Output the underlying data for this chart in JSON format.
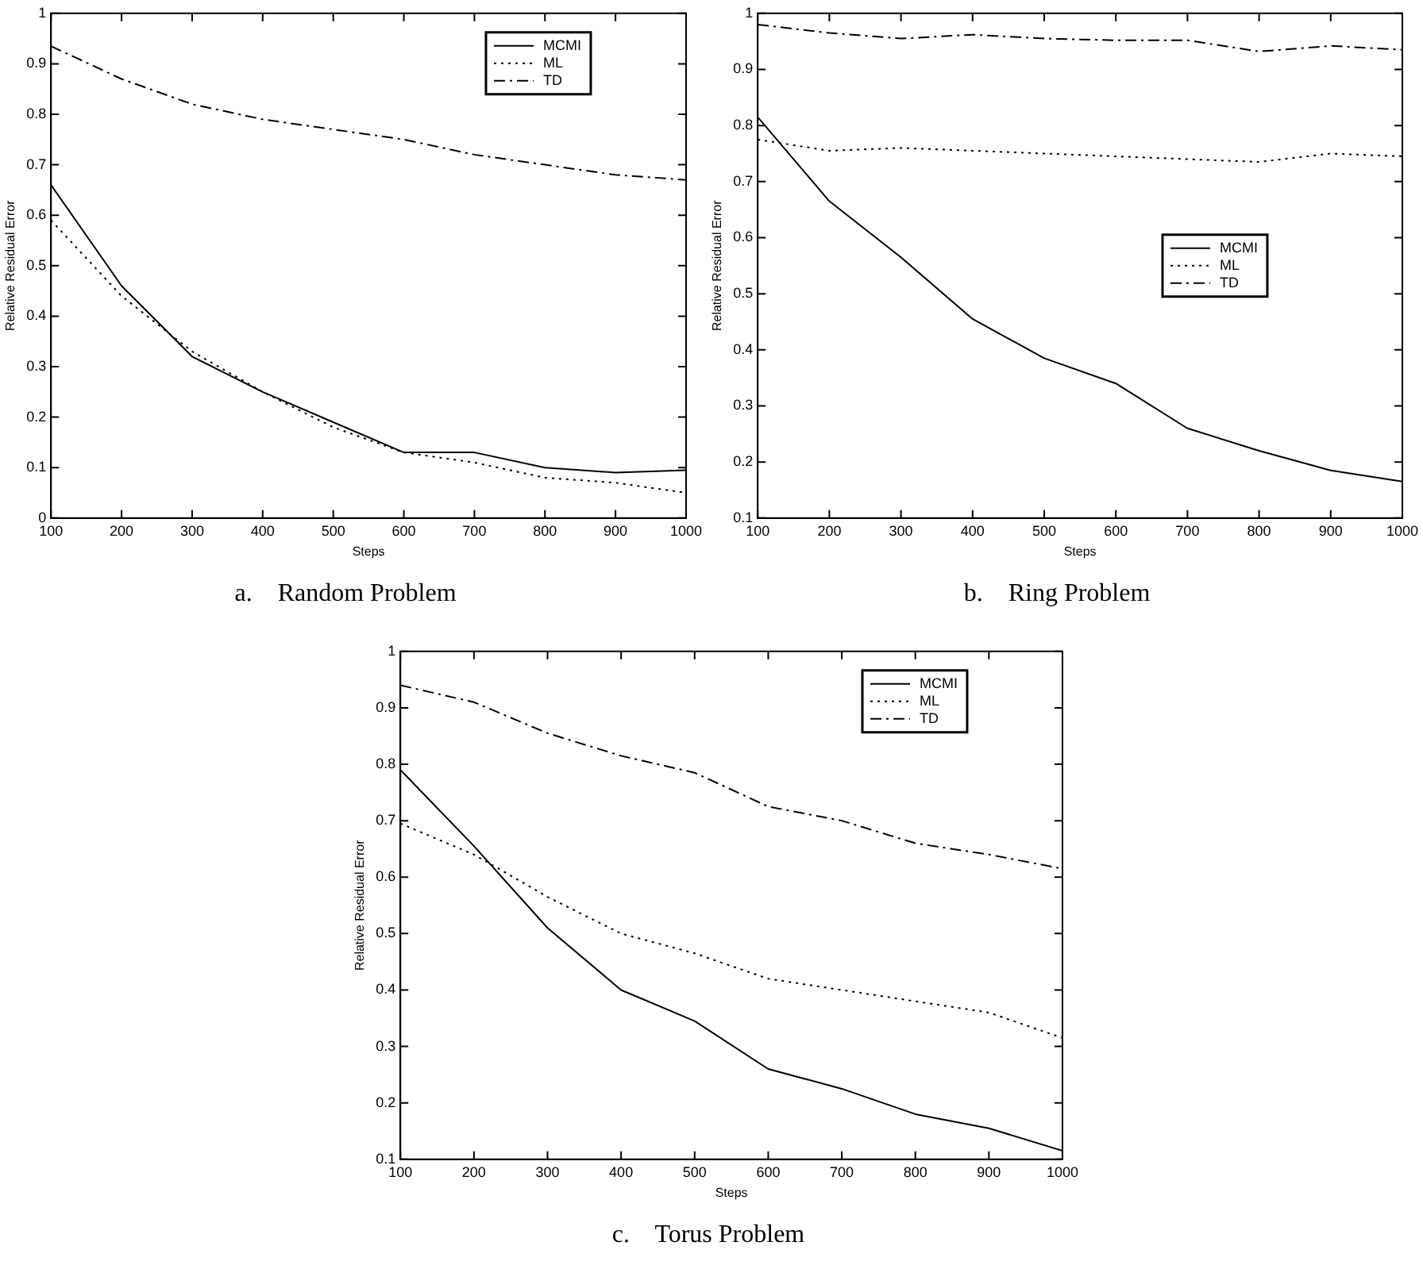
{
  "chart_data": [
    {
      "type": "line",
      "title": "a.    Random Problem",
      "xlabel": "Steps",
      "ylabel": "Relative Residual Error",
      "x": [
        100,
        200,
        300,
        400,
        500,
        600,
        700,
        800,
        900,
        1000
      ],
      "xlim": [
        100,
        1000
      ],
      "xticks": [
        100,
        200,
        300,
        400,
        500,
        600,
        700,
        800,
        900,
        1000
      ],
      "ylim": [
        0,
        1
      ],
      "yticks": [
        0,
        0.1,
        0.2,
        0.3,
        0.4,
        0.5,
        0.6,
        0.7,
        0.8,
        0.9,
        1
      ],
      "legend": "top right",
      "marker": "none",
      "series": [
        {
          "name": "MCMI",
          "color": "#000000",
          "line_style": "solid",
          "values": [
            0.66,
            0.46,
            0.32,
            0.25,
            0.19,
            0.13,
            0.13,
            0.1,
            0.09,
            0.095
          ]
        },
        {
          "name": "ML",
          "color": "#000000",
          "line_style": "dotted",
          "values": [
            0.59,
            0.44,
            0.33,
            0.25,
            0.18,
            0.13,
            0.11,
            0.08,
            0.07,
            0.05
          ]
        },
        {
          "name": "TD",
          "color": "#000000",
          "line_style": "dashed",
          "values": [
            0.935,
            0.87,
            0.82,
            0.79,
            0.77,
            0.75,
            0.72,
            0.7,
            0.68,
            0.67
          ]
        }
      ]
    },
    {
      "type": "line",
      "title": "b.    Ring Problem",
      "xlabel": "Steps",
      "ylabel": "Relative Residual Error",
      "x": [
        100,
        200,
        300,
        400,
        500,
        600,
        700,
        800,
        900,
        1000
      ],
      "xlim": [
        100,
        1000
      ],
      "xticks": [
        100,
        200,
        300,
        400,
        500,
        600,
        700,
        800,
        900,
        1000
      ],
      "ylim": [
        0.1,
        1
      ],
      "yticks": [
        0.1,
        0.2,
        0.3,
        0.4,
        0.5,
        0.6,
        0.7,
        0.8,
        0.9,
        1
      ],
      "legend": "right",
      "marker": "none",
      "series": [
        {
          "name": "MCMI",
          "color": "#000000",
          "line_style": "solid",
          "values": [
            0.815,
            0.665,
            0.565,
            0.455,
            0.385,
            0.34,
            0.26,
            0.22,
            0.185,
            0.165
          ]
        },
        {
          "name": "ML",
          "color": "#000000",
          "line_style": "dotted",
          "values": [
            0.775,
            0.755,
            0.76,
            0.755,
            0.75,
            0.745,
            0.74,
            0.735,
            0.75,
            0.745
          ]
        },
        {
          "name": "TD",
          "color": "#000000",
          "line_style": "dashed",
          "values": [
            0.98,
            0.965,
            0.955,
            0.962,
            0.955,
            0.952,
            0.952,
            0.932,
            0.942,
            0.935
          ]
        }
      ]
    },
    {
      "type": "line",
      "title": "c.    Torus Problem",
      "xlabel": "Steps",
      "ylabel": "Relative Residual Error",
      "x": [
        100,
        200,
        300,
        400,
        500,
        600,
        700,
        800,
        900,
        1000
      ],
      "xlim": [
        100,
        1000
      ],
      "xticks": [
        100,
        200,
        300,
        400,
        500,
        600,
        700,
        800,
        900,
        1000
      ],
      "ylim": [
        0.1,
        1
      ],
      "yticks": [
        0.1,
        0.2,
        0.3,
        0.4,
        0.5,
        0.6,
        0.7,
        0.8,
        0.9,
        1
      ],
      "legend": "top right",
      "marker": "none",
      "series": [
        {
          "name": "MCMI",
          "color": "#000000",
          "line_style": "solid",
          "values": [
            0.79,
            0.655,
            0.51,
            0.4,
            0.345,
            0.26,
            0.225,
            0.18,
            0.155,
            0.115
          ]
        },
        {
          "name": "ML",
          "color": "#000000",
          "line_style": "dotted",
          "values": [
            0.695,
            0.64,
            0.565,
            0.5,
            0.465,
            0.42,
            0.4,
            0.38,
            0.36,
            0.315
          ]
        },
        {
          "name": "TD",
          "color": "#000000",
          "line_style": "dashed",
          "values": [
            0.94,
            0.91,
            0.855,
            0.815,
            0.785,
            0.725,
            0.7,
            0.66,
            0.64,
            0.615
          ]
        }
      ]
    }
  ]
}
